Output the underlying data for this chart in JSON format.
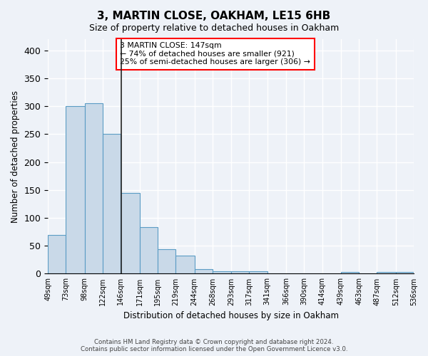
{
  "title": "3, MARTIN CLOSE, OAKHAM, LE15 6HB",
  "subtitle": "Size of property relative to detached houses in Oakham",
  "xlabel": "Distribution of detached houses by size in Oakham",
  "ylabel": "Number of detached properties",
  "bar_lefts": [
    49,
    73,
    98,
    122,
    146,
    171,
    195,
    219,
    244,
    268,
    293,
    317,
    341,
    366,
    390,
    414,
    439,
    463,
    487,
    512
  ],
  "bar_rights": [
    73,
    98,
    122,
    146,
    171,
    195,
    219,
    244,
    268,
    293,
    317,
    341,
    366,
    390,
    414,
    439,
    463,
    487,
    512,
    536
  ],
  "bar_values": [
    70,
    300,
    305,
    250,
    145,
    83,
    44,
    33,
    8,
    5,
    5,
    5,
    1,
    1,
    1,
    1,
    3,
    1,
    3,
    3
  ],
  "tick_positions": [
    49,
    73,
    98,
    122,
    146,
    171,
    195,
    219,
    244,
    268,
    293,
    317,
    341,
    366,
    390,
    414,
    439,
    463,
    487,
    512,
    536
  ],
  "tick_labels": [
    "49sqm",
    "73sqm",
    "98sqm",
    "122sqm",
    "146sqm",
    "171sqm",
    "195sqm",
    "219sqm",
    "244sqm",
    "268sqm",
    "293sqm",
    "317sqm",
    "341sqm",
    "366sqm",
    "390sqm",
    "414sqm",
    "439sqm",
    "463sqm",
    "487sqm",
    "512sqm",
    "536sqm"
  ],
  "bar_color": "#c9d9e8",
  "bar_edge_color": "#5b9cc4",
  "vline_x": 147,
  "annotation_text": "3 MARTIN CLOSE: 147sqm\n← 74% of detached houses are smaller (921)\n25% of semi-detached houses are larger (306) →",
  "annotation_box_color": "white",
  "annotation_box_edge": "red",
  "ylim": [
    0,
    420
  ],
  "xlim": [
    49,
    536
  ],
  "background_color": "#eef2f8",
  "grid_color": "white",
  "footer_text": "Contains HM Land Registry data © Crown copyright and database right 2024.\nContains public sector information licensed under the Open Government Licence v3.0."
}
